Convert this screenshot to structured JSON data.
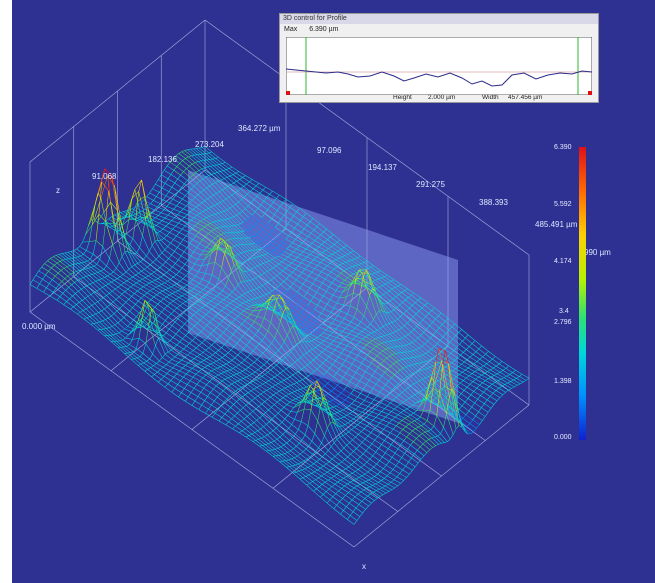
{
  "profile_window": {
    "title": "3D control for Profile",
    "max_label": "Max",
    "max_value": "6.390 µm",
    "height_label": "Height",
    "height_value": "2.000 µm",
    "width_label": "Width",
    "width_value": "457.456 µm"
  },
  "axes": {
    "x_ticks": [
      "91.068",
      "182.136",
      "273.204",
      "364.272 µm"
    ],
    "y_ticks": [
      "97.096",
      "194.137",
      "291.275",
      "388.393"
    ],
    "z_label": "z",
    "x_label": "x",
    "z_origin": "0.000 µm",
    "y_end": "485.491 µm",
    "z_side": "990 µm"
  },
  "colorbar": {
    "ticks": [
      "6.390",
      "5.592",
      "4.174",
      "3.4",
      "2.796",
      "1.398",
      "0.000"
    ]
  },
  "colors": {
    "background": "#2e3192"
  }
}
